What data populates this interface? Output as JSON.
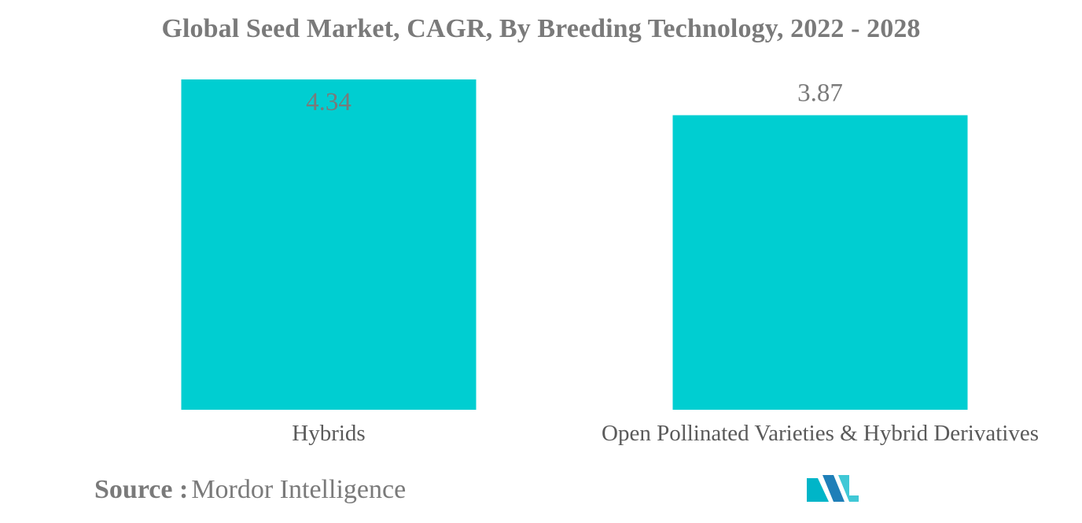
{
  "chart_data": {
    "type": "bar",
    "title": "Global Seed Market, CAGR, By Breeding Technology, 2022 - 2028",
    "categories": [
      "Hybrids",
      "Open Pollinated Varieties & Hybrid Derivatives"
    ],
    "values": [
      4.34,
      3.87
    ],
    "data_labels": [
      "4.34",
      "3.87"
    ],
    "xlabel": "",
    "ylabel": "",
    "ylim": [
      0,
      4.34
    ],
    "grid": false,
    "legend": "none",
    "bar_color": "#00ced1",
    "label_color": "#7a7a7a"
  },
  "footer": {
    "source_label": "Source :",
    "source_name": "Mordor Intelligence",
    "logo_colors": [
      "#00b5c8",
      "#1f7fb8",
      "#40c8d6"
    ]
  }
}
